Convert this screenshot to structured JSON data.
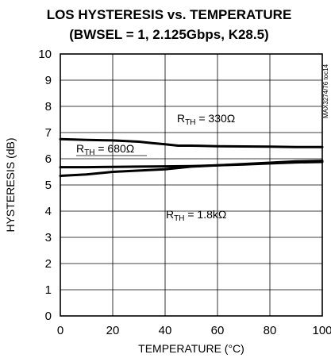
{
  "chart_data": {
    "type": "line",
    "title": "LOS HYSTERESIS vs. TEMPERATURE",
    "subtitle": "(BWSEL = 1, 2.125Gbps, K28.5)",
    "xlabel": "TEMPERATURE (°C)",
    "ylabel": "HYSTERESIS (dB)",
    "xlim": [
      0,
      100
    ],
    "ylim": [
      0,
      10
    ],
    "xticks": [
      "0",
      "20",
      "40",
      "60",
      "80",
      "100"
    ],
    "yticks": [
      "0",
      "1",
      "2",
      "3",
      "4",
      "5",
      "6",
      "7",
      "8",
      "9",
      "10"
    ],
    "grid": true,
    "side_label": "MAX3274/76 toc14",
    "series": [
      {
        "name": "R_TH = 330Ω",
        "label_main": "R",
        "label_sub": "TH",
        "label_rest": " = 330Ω",
        "x": [
          0,
          10,
          20,
          30,
          35,
          40,
          45,
          50,
          60,
          70,
          80,
          90,
          100
        ],
        "y": [
          6.75,
          6.72,
          6.7,
          6.65,
          6.6,
          6.55,
          6.5,
          6.5,
          6.48,
          6.47,
          6.46,
          6.45,
          6.45
        ]
      },
      {
        "name": "R_TH = 680Ω",
        "label_main": "R",
        "label_sub": "TH",
        "label_rest": " = 680Ω",
        "x": [
          0,
          10,
          20,
          30,
          40,
          50,
          60,
          70,
          80,
          90,
          100
        ],
        "y": [
          5.68,
          5.68,
          5.69,
          5.7,
          5.71,
          5.72,
          5.75,
          5.8,
          5.85,
          5.9,
          5.92
        ]
      },
      {
        "name": "R_TH = 1.8kΩ",
        "label_main": "R",
        "label_sub": "TH",
        "label_rest": " = 1.8kΩ",
        "x": [
          0,
          10,
          20,
          30,
          40,
          50,
          60,
          70,
          80,
          90,
          100
        ],
        "y": [
          5.35,
          5.4,
          5.5,
          5.55,
          5.6,
          5.7,
          5.75,
          5.78,
          5.82,
          5.86,
          5.88
        ]
      }
    ]
  }
}
